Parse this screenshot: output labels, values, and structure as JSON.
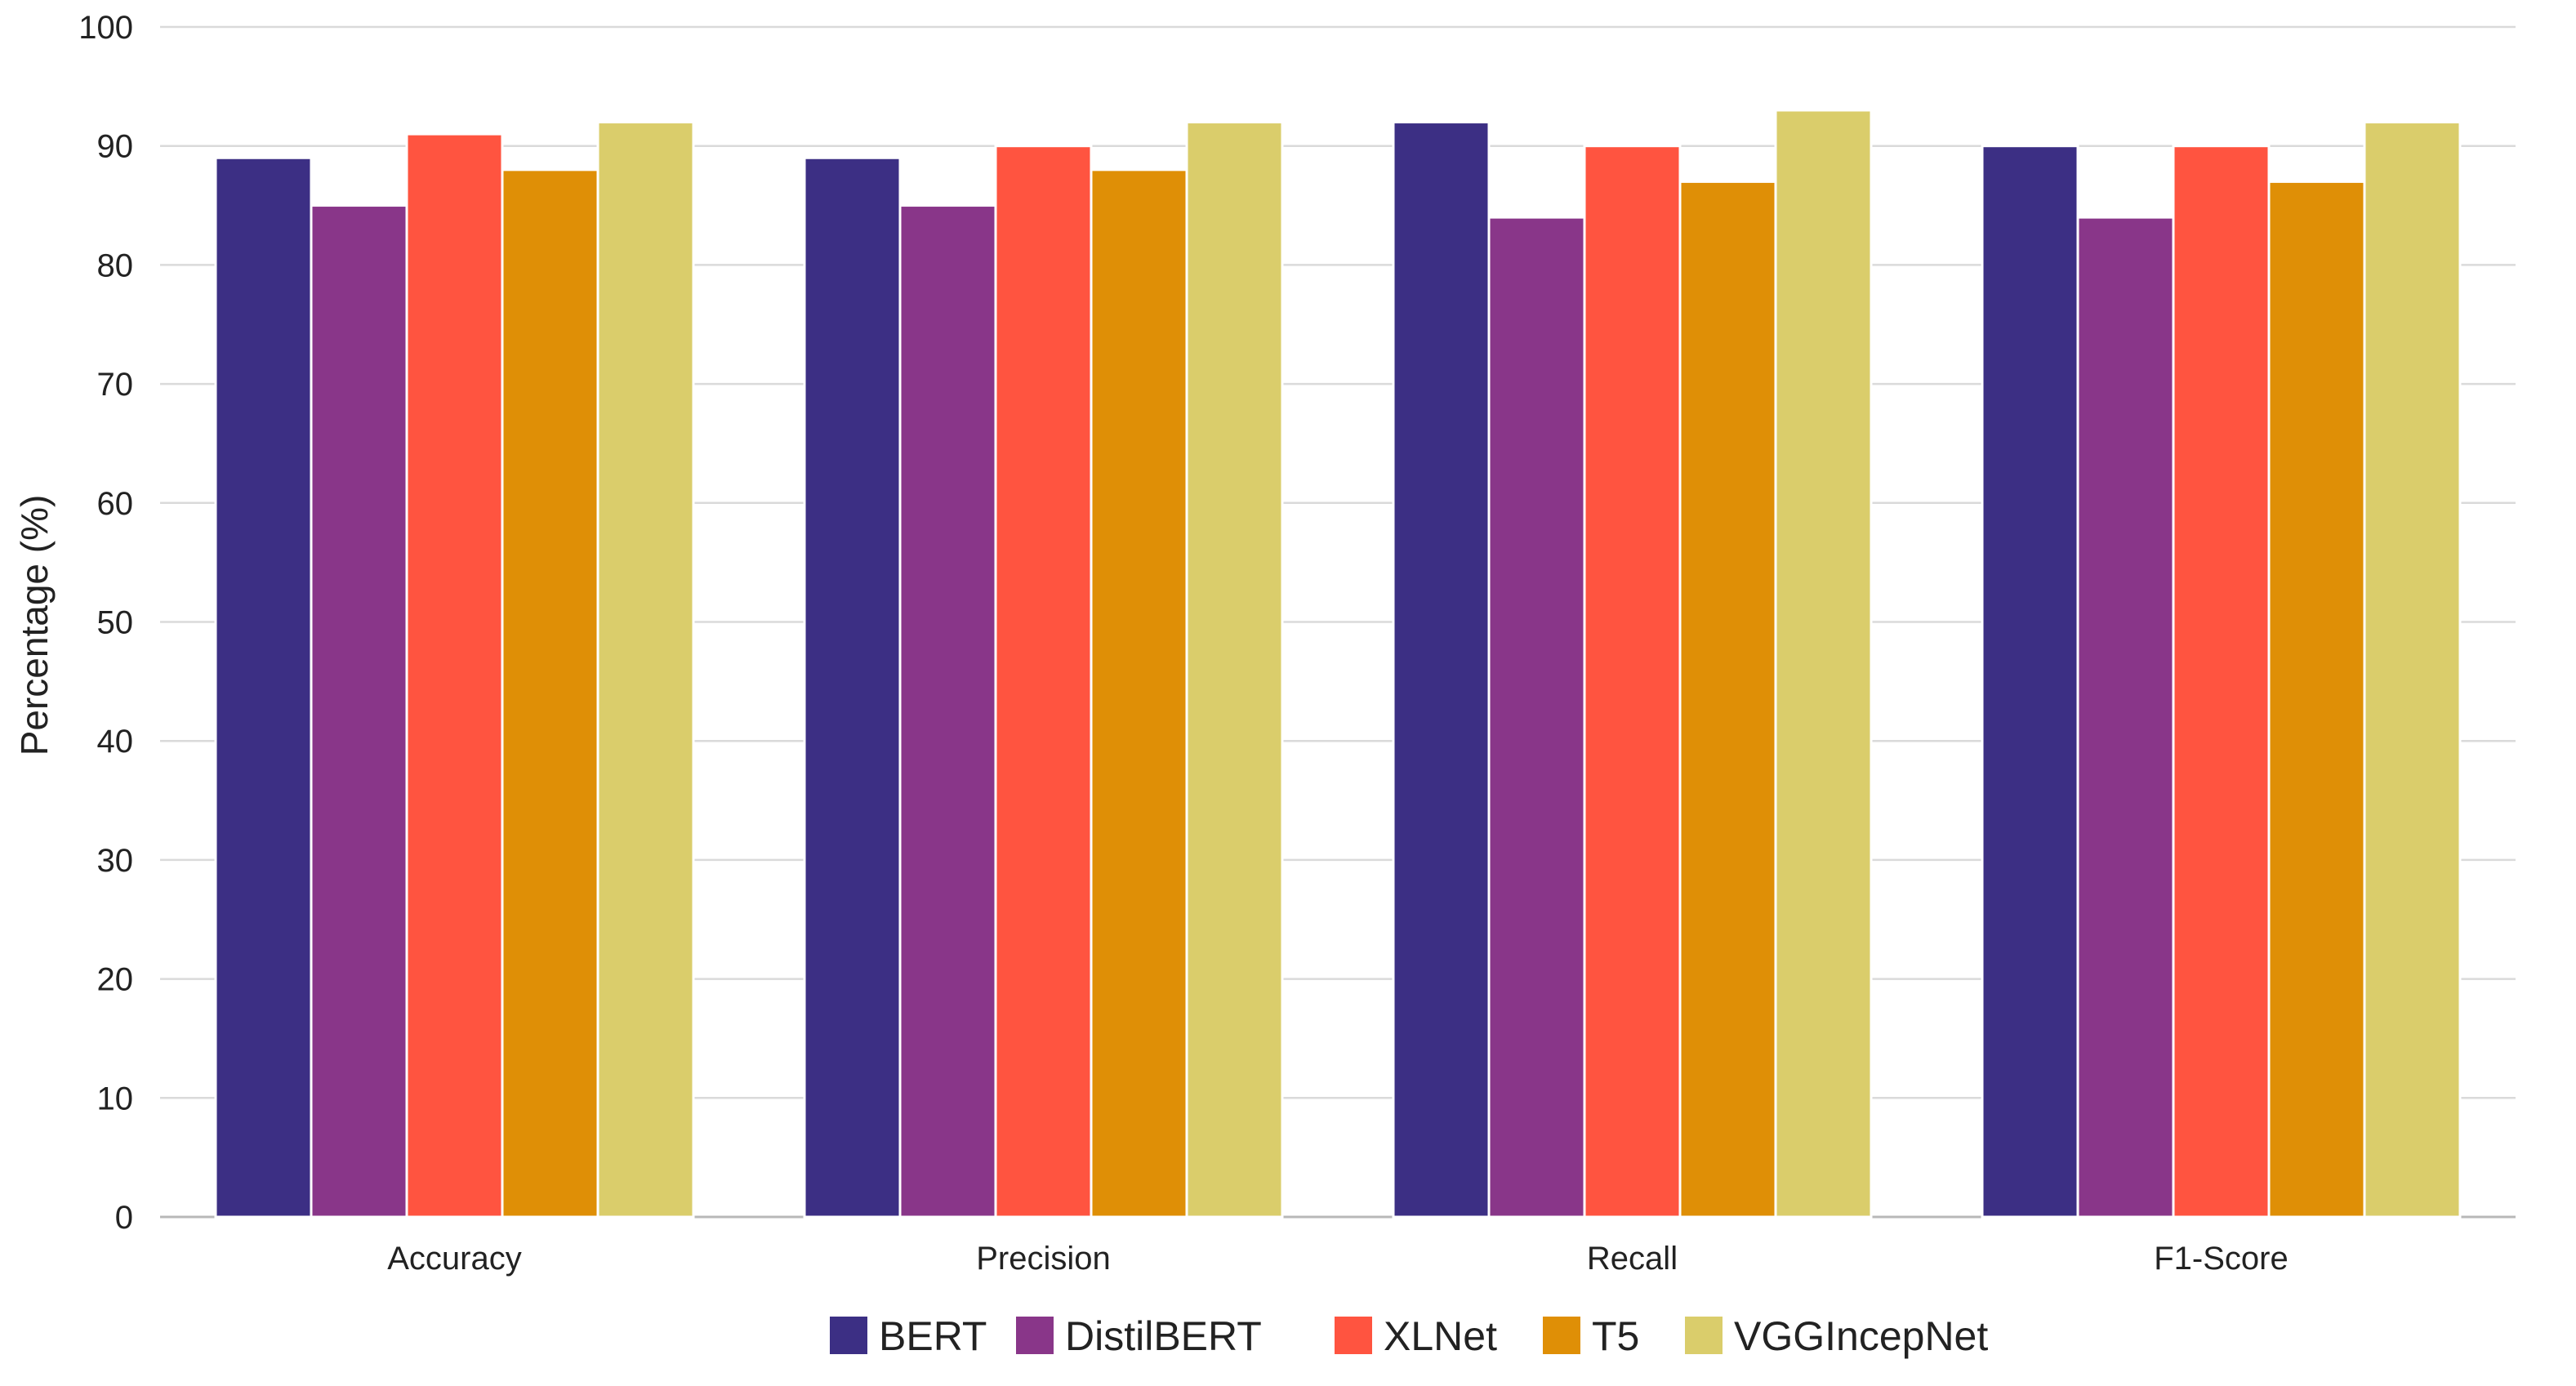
{
  "chart_data": {
    "type": "bar",
    "title": "",
    "xlabel": "",
    "ylabel": "Percentage (%)",
    "ylim": [
      0,
      100
    ],
    "yticks": [
      0,
      10,
      20,
      30,
      40,
      50,
      60,
      70,
      80,
      90,
      100
    ],
    "grid": "horizontal",
    "legend_position": "bottom-center",
    "categories": [
      "Accuracy",
      "Precision",
      "Recall",
      "F1-Score"
    ],
    "series": [
      {
        "name": "BERT",
        "color": "#3c2f84",
        "values": [
          89,
          89,
          92,
          90
        ]
      },
      {
        "name": "DistilBERT",
        "color": "#893689",
        "values": [
          85,
          85,
          84,
          84
        ]
      },
      {
        "name": "XLNet",
        "color": "#ff5440",
        "values": [
          91,
          90,
          90,
          90
        ]
      },
      {
        "name": "T5",
        "color": "#df8f06",
        "values": [
          88,
          88,
          87,
          87
        ]
      },
      {
        "name": "VGGIncepNet",
        "color": "#dacd6b",
        "values": [
          92,
          92,
          93,
          92
        ]
      }
    ]
  }
}
